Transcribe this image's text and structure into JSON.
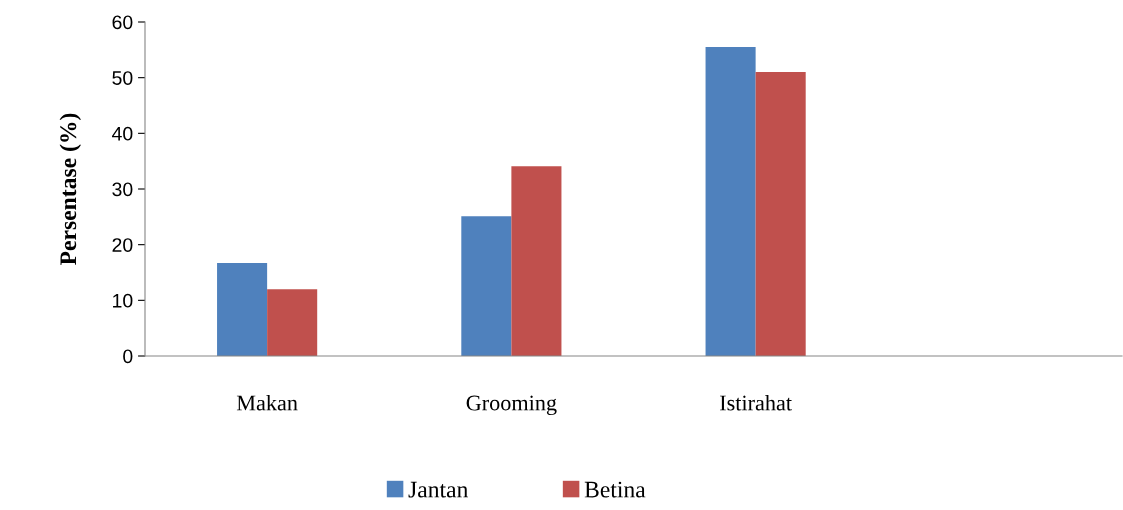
{
  "chart_data": {
    "type": "bar",
    "ylabel": "Persentase (%)",
    "categories": [
      "Makan",
      "Grooming",
      "Istirahat",
      null
    ],
    "series": [
      {
        "name": "Jantan",
        "color": "#4f81bd",
        "values": [
          16.7,
          25.1,
          55.5,
          null
        ]
      },
      {
        "name": "Betina",
        "color": "#c0504d",
        "values": [
          12.0,
          34.1,
          51.0,
          null
        ]
      }
    ],
    "ylim": [
      0,
      60
    ],
    "yticks": [
      0,
      10,
      20,
      30,
      40,
      50,
      60
    ],
    "grid": false,
    "legend": "bottom"
  }
}
